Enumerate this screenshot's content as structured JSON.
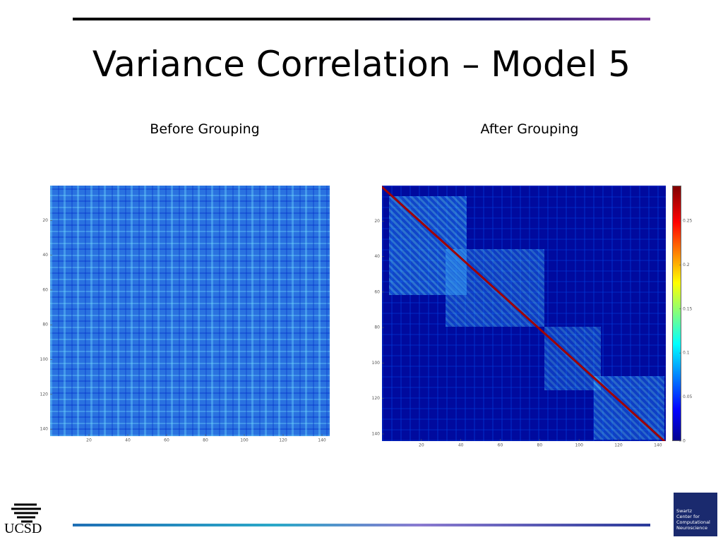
{
  "header": {
    "title": "Variance Correlation – Model 5"
  },
  "panels": [
    {
      "label": "Before Grouping",
      "xlim": [
        0,
        144
      ],
      "ylim": [
        0,
        144
      ],
      "xticks": [
        20,
        40,
        60,
        80,
        100,
        120,
        140
      ],
      "yticks": [
        20,
        40,
        60,
        80,
        100,
        120,
        140
      ]
    },
    {
      "label": "After Grouping",
      "xlim": [
        0,
        144
      ],
      "ylim": [
        0,
        144
      ],
      "xticks": [
        20,
        40,
        60,
        80,
        100,
        120,
        140
      ],
      "yticks": [
        20,
        40,
        60,
        80,
        100,
        120,
        140
      ],
      "colorbar": {
        "lim": [
          0,
          0.29
        ],
        "ticks": [
          0,
          0.05,
          0.1,
          0.15,
          0.2,
          0.25
        ]
      }
    }
  ],
  "footer": {
    "left_logo": "UCSD",
    "right_logo": [
      "Swartz",
      "Center for",
      "Computational",
      "Neuroscience"
    ]
  }
}
